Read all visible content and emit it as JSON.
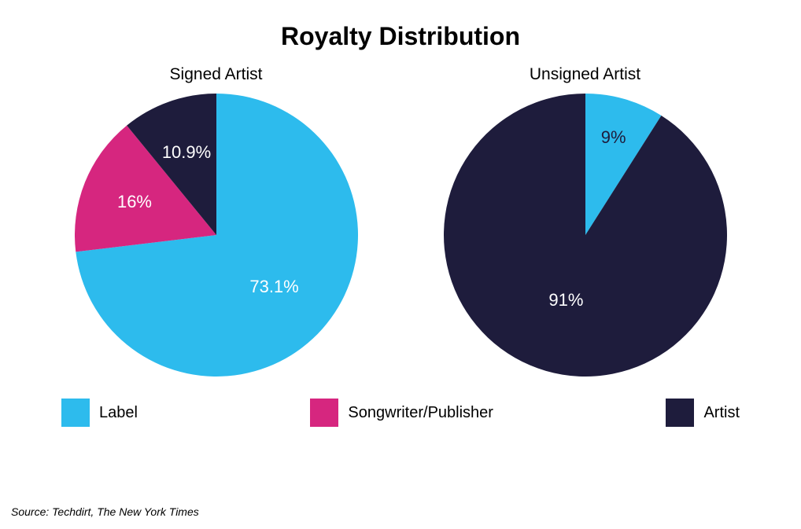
{
  "title": "Royalty Distribution",
  "background_color": "#ffffff",
  "title_color": "#000000",
  "title_fontsize": 32,
  "subtitle_fontsize": 21,
  "label_fontsize": 22,
  "legend_fontsize": 20,
  "source_fontsize": 14,
  "charts": {
    "signed": {
      "title": "Signed Artist",
      "type": "pie",
      "radius": 180,
      "start_angle_deg": 0,
      "slices": [
        {
          "key": "label",
          "value": 73.1,
          "label": "73.1%",
          "color": "#2dbbed",
          "label_color": "#ffffff",
          "label_r": 0.55
        },
        {
          "key": "songwriter",
          "value": 16.0,
          "label": "16%",
          "color": "#d6267f",
          "label_color": "#ffffff",
          "label_r": 0.62
        },
        {
          "key": "artist",
          "value": 10.9,
          "label": "10.9%",
          "color": "#1e1c3c",
          "label_color": "#ffffff",
          "label_r": 0.62
        }
      ]
    },
    "unsigned": {
      "title": "Unsigned Artist",
      "type": "pie",
      "radius": 180,
      "start_angle_deg": 0,
      "slices": [
        {
          "key": "label",
          "value": 9.0,
          "label": "9%",
          "color": "#2dbbed",
          "label_color": "#1e1c3c",
          "label_r": 0.72
        },
        {
          "key": "artist",
          "value": 91.0,
          "label": "91%",
          "color": "#1e1c3c",
          "label_color": "#ffffff",
          "label_r": 0.48
        }
      ]
    }
  },
  "legend": [
    {
      "label": "Label",
      "color": "#2dbbed"
    },
    {
      "label": "Songwriter/Publisher",
      "color": "#d6267f"
    },
    {
      "label": "Artist",
      "color": "#1e1c3c"
    }
  ],
  "source": "Source: Techdirt, The New York Times"
}
